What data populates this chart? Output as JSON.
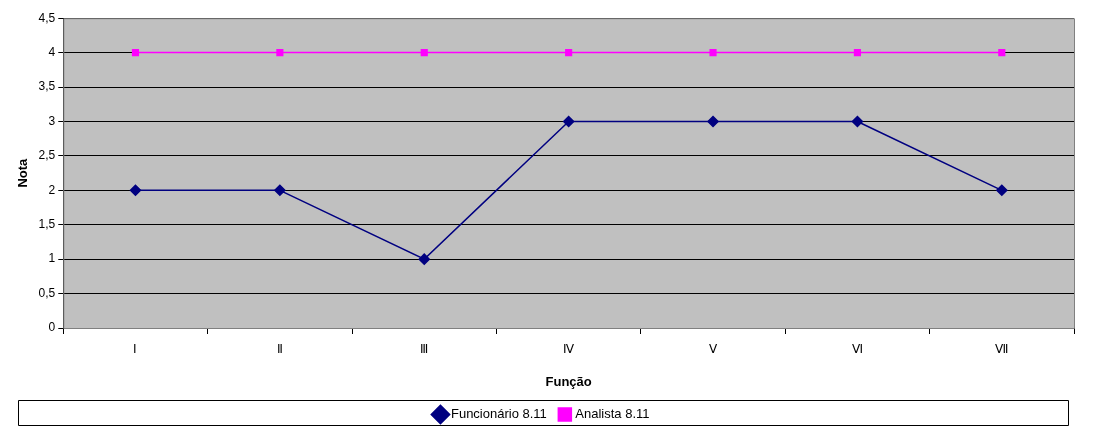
{
  "chart_data": {
    "type": "line",
    "xlabel": "Função",
    "ylabel": "Nota",
    "categories": [
      "Ⅰ",
      "Ⅱ",
      "Ⅲ",
      "Ⅳ",
      "Ⅴ",
      "Ⅵ",
      "Ⅶ"
    ],
    "series": [
      {
        "name": "Funcionário 8.11",
        "color": "#000080",
        "marker": "diamond",
        "values": [
          2,
          2,
          1,
          3,
          3,
          3,
          2
        ]
      },
      {
        "name": "Analista 8.11",
        "color": "#ff00ff",
        "marker": "square",
        "values": [
          4,
          4,
          4,
          4,
          4,
          4,
          4
        ]
      }
    ],
    "ylim": [
      0,
      4.5
    ],
    "yticks": [
      0,
      {
        "value": 0.5,
        "label": "0,5"
      },
      1,
      {
        "value": 1.5,
        "label": "1,5"
      },
      2,
      {
        "value": 2.5,
        "label": "2,5"
      },
      3,
      {
        "value": 3.5,
        "label": "3,5"
      },
      4,
      {
        "value": 4.5,
        "label": "4,5"
      }
    ],
    "grid": "y",
    "legend": "bottom",
    "line_style": "solid"
  }
}
